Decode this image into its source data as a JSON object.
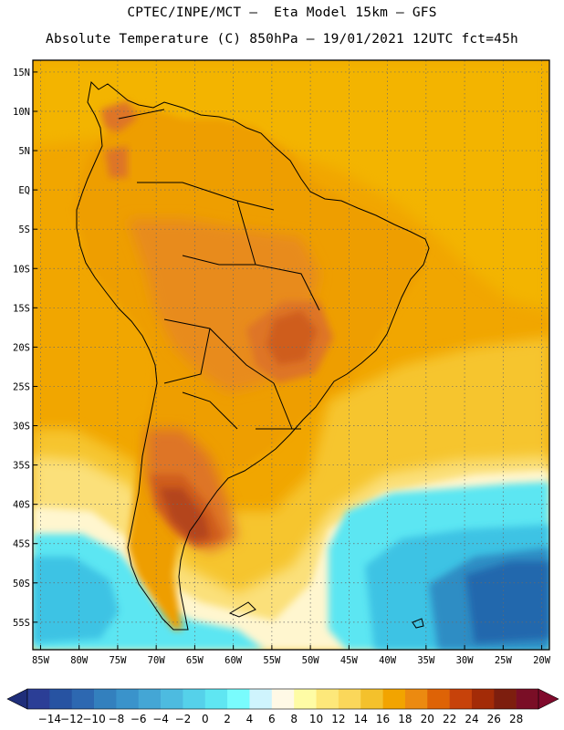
{
  "header": {
    "line1": "CPTEC/INPE/MCT –  Eta Model 15km – GFS",
    "line2": "Absolute Temperature (C) 850hPa – 19/01/2021 12UTC fct=45h"
  },
  "map": {
    "lon_range": [
      -86,
      -19
    ],
    "lat_range": [
      -58.5,
      16.5
    ],
    "lon_ticks": [
      {
        "value": -85,
        "label": "85W"
      },
      {
        "value": -80,
        "label": "80W"
      },
      {
        "value": -75,
        "label": "75W"
      },
      {
        "value": -70,
        "label": "70W"
      },
      {
        "value": -65,
        "label": "65W"
      },
      {
        "value": -60,
        "label": "60W"
      },
      {
        "value": -55,
        "label": "55W"
      },
      {
        "value": -50,
        "label": "50W"
      },
      {
        "value": -45,
        "label": "45W"
      },
      {
        "value": -40,
        "label": "40W"
      },
      {
        "value": -35,
        "label": "35W"
      },
      {
        "value": -30,
        "label": "30W"
      },
      {
        "value": -25,
        "label": "25W"
      },
      {
        "value": -20,
        "label": "20W"
      }
    ],
    "lat_ticks": [
      {
        "value": 15,
        "label": "15N"
      },
      {
        "value": 10,
        "label": "10N"
      },
      {
        "value": 5,
        "label": "5N"
      },
      {
        "value": 0,
        "label": "EQ"
      },
      {
        "value": -5,
        "label": "5S"
      },
      {
        "value": -10,
        "label": "10S"
      },
      {
        "value": -15,
        "label": "15S"
      },
      {
        "value": -20,
        "label": "20S"
      },
      {
        "value": -25,
        "label": "25S"
      },
      {
        "value": -30,
        "label": "30S"
      },
      {
        "value": -35,
        "label": "35S"
      },
      {
        "value": -40,
        "label": "40S"
      },
      {
        "value": -45,
        "label": "45S"
      },
      {
        "value": -50,
        "label": "50S"
      },
      {
        "value": -55,
        "label": "55S"
      }
    ],
    "grid": "dotted",
    "colors": {
      "ocean_tropical": "#f1a600",
      "ocean_north_warm": "#f3b400",
      "ocean_subtropical": "#f6c52e",
      "ocean_mid": "#fbe07a",
      "land_main": "#ee9e00",
      "land_warm": "#e88b1c",
      "land_hot": "#de7428",
      "land_hotter": "#cf5d1c",
      "hot_core": "#b4441a",
      "cool_band": "#fff6cf",
      "cold_cyan": "#5ce6f2",
      "cold_mid": "#3ec3e4",
      "cold_deep": "#2f8dc4",
      "cold_core": "#2468ad",
      "coast": "#000000"
    }
  },
  "colorbar": {
    "labels": [
      "-14",
      "-12",
      "-10",
      "-8",
      "-6",
      "-4",
      "-2",
      "0",
      "2",
      "4",
      "6",
      "8",
      "10",
      "12",
      "14",
      "16",
      "18",
      "20",
      "22",
      "24",
      "26",
      "28"
    ],
    "colors": [
      "#2b3e96",
      "#2753a2",
      "#2d68b1",
      "#3380be",
      "#3a93cb",
      "#44a6d5",
      "#4dbbe0",
      "#55d1ea",
      "#5fe6f2",
      "#79fcfd",
      "#cff4fd",
      "#fff9e6",
      "#fefca5",
      "#fde87a",
      "#fbd75a",
      "#f4c12c",
      "#f2a400",
      "#ec8a10",
      "#de6306",
      "#c7420a",
      "#a32b07",
      "#7d1e0e",
      "#7a0e26"
    ],
    "left_end": "#1f2e7a",
    "right_end": "#800a2c"
  }
}
